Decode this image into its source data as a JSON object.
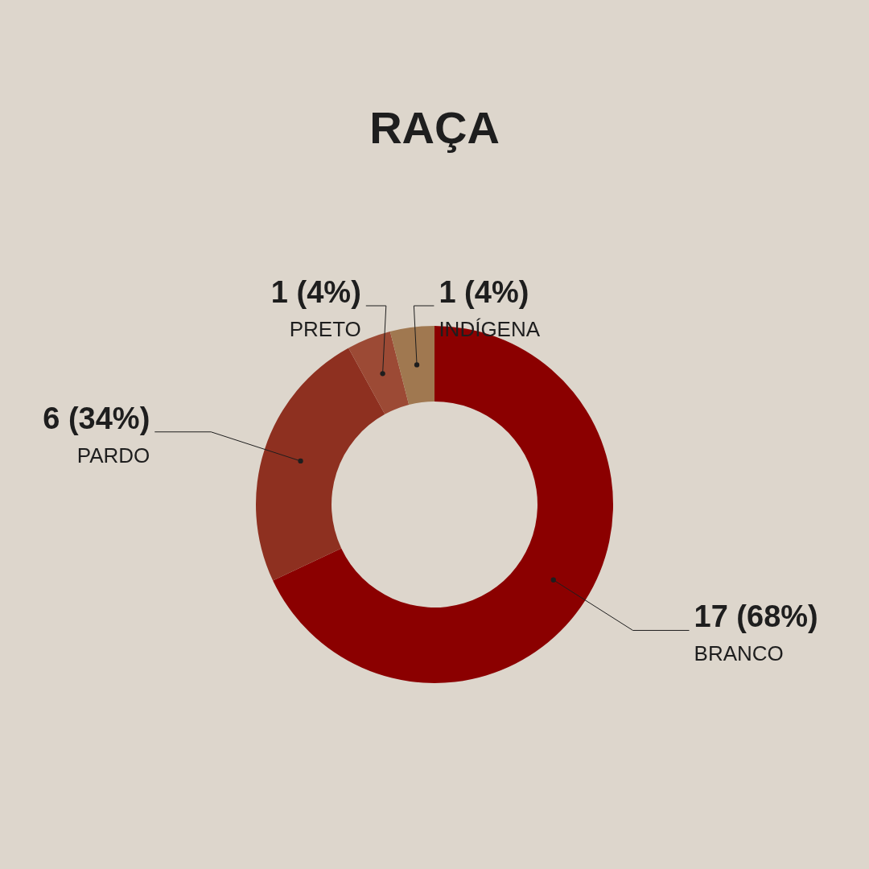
{
  "chart_data": {
    "type": "donut",
    "title": "RAÇA",
    "categories": [
      "BRANCO",
      "PARDO",
      "PRETO",
      "INDÍGENA"
    ],
    "values": [
      17,
      6,
      1,
      1
    ],
    "colors": [
      "#8b0000",
      "#8e3020",
      "#9c4a35",
      "#a07850"
    ],
    "value_labels": [
      "17 (68%)",
      "6 (34%)",
      "1 (4%)",
      "1 (4%)"
    ]
  }
}
